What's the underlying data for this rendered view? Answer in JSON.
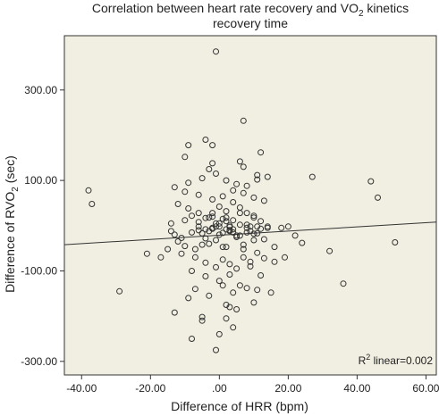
{
  "chart_data": {
    "type": "scatter",
    "title_line1_pre": "Correlation between heart rate recovery and VO",
    "title_line1_sub": "2",
    "title_line1_post": " kinetics",
    "title_line2": "recovery time",
    "xlabel": "Difference of HRR (bpm)",
    "ylabel_pre": "Difference of RVO",
    "ylabel_sub": "2",
    "ylabel_post": " (sec)",
    "xlim": [
      -45,
      63
    ],
    "ylim": [
      -330,
      420
    ],
    "x_ticks": [
      -40,
      -20,
      0,
      20,
      40,
      60
    ],
    "x_tick_labels": [
      "-40.00",
      "-20.00",
      ".00",
      "20.00",
      "40.00",
      "60.00"
    ],
    "y_ticks": [
      300,
      100,
      -100,
      -300
    ],
    "y_tick_labels": [
      "300.00",
      "100.00",
      "-100.00",
      "-300.00"
    ],
    "fit_line": {
      "x": [
        -45,
        63
      ],
      "y": [
        -42,
        8
      ]
    },
    "annotation_pre": "R",
    "annotation_sup": "2",
    "annotation_post": " linear=0.002",
    "colors": {
      "plot_bg": "#f1efe2",
      "point": "#333333",
      "line": "#333333",
      "axes": "#333333"
    },
    "x": [
      -1,
      7,
      27,
      44,
      46,
      51,
      36,
      32,
      -38,
      -37,
      -2,
      -4,
      -9,
      -29,
      -21,
      -17,
      -13,
      -14,
      -12,
      -10,
      -8,
      -6,
      -5,
      -4,
      -3,
      -2,
      -1,
      0,
      1,
      2,
      3,
      4,
      5,
      6,
      7,
      8,
      9,
      10,
      11,
      12,
      14,
      18,
      22,
      -11,
      -7,
      -5,
      -3,
      -1,
      1,
      3,
      5,
      7,
      9,
      11,
      13,
      16,
      20,
      -10,
      -8,
      -6,
      -4,
      -2,
      0,
      2,
      4,
      6,
      8,
      10,
      12,
      -12,
      -9,
      -6,
      -3,
      0,
      2,
      4,
      6,
      8,
      10,
      -15,
      -11,
      -7,
      -4,
      -1,
      1,
      3,
      5,
      7,
      9,
      11,
      13,
      16,
      19,
      -8,
      -4,
      0,
      3,
      6,
      9,
      12,
      -10,
      -6,
      -2,
      1,
      4,
      7,
      10,
      13,
      -13,
      -9,
      -5,
      -1,
      2,
      5,
      8,
      11,
      14,
      24,
      -7,
      -3,
      1,
      4,
      8,
      11,
      15,
      -10,
      -2,
      6,
      12,
      -13,
      -5,
      2,
      5,
      -9,
      3,
      10,
      -3,
      7,
      11,
      -5,
      0,
      4,
      -8,
      -1,
      2,
      14,
      10,
      6,
      4,
      2,
      -2,
      -6,
      -14,
      8,
      -4,
      3,
      0,
      -1,
      1,
      2,
      3,
      -2
    ],
    "y": [
      385,
      232,
      108,
      98,
      62,
      -37,
      -128,
      -56,
      78,
      48,
      178,
      190,
      178,
      -145,
      -62,
      -70,
      -20,
      5,
      -35,
      -45,
      -15,
      -10,
      -42,
      -28,
      -12,
      -7,
      -32,
      -2,
      -16,
      -47,
      -3,
      -8,
      -22,
      2,
      -52,
      -5,
      -12,
      -32,
      -2,
      -7,
      -2,
      -5,
      -22,
      -27,
      -52,
      -17,
      -40,
      -2,
      -47,
      -12,
      -25,
      -42,
      -2,
      -17,
      -30,
      -47,
      -2,
      12,
      22,
      8,
      17,
      28,
      5,
      18,
      12,
      28,
      2,
      22,
      10,
      48,
      38,
      28,
      18,
      42,
      32,
      52,
      40,
      28,
      18,
      -52,
      -62,
      -70,
      -82,
      -92,
      -75,
      -85,
      -95,
      -70,
      -80,
      -60,
      -72,
      -80,
      -70,
      -100,
      -112,
      -122,
      -108,
      -132,
      -90,
      -110,
      75,
      68,
      58,
      65,
      78,
      72,
      62,
      55,
      85,
      95,
      105,
      115,
      100,
      92,
      88,
      102,
      108,
      -38,
      -140,
      -155,
      -132,
      -148,
      -138,
      -142,
      -148,
      152,
      138,
      142,
      162,
      -192,
      -202,
      -175,
      -185,
      -160,
      -180,
      -170,
      125,
      130,
      112,
      -210,
      -240,
      -225,
      -250,
      -275,
      -205,
      -5,
      -18,
      -22,
      -15,
      -8,
      -5,
      -2,
      -12,
      -15,
      -8,
      -10,
      -20,
      5,
      15,
      10,
      0,
      20
    ]
  }
}
